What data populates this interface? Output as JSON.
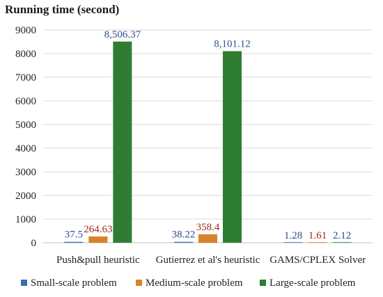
{
  "chart_data": {
    "type": "bar",
    "title": "Running time (second)",
    "ylabel": "Running time (second)",
    "xlabel": "",
    "categories": [
      "Push&pull heuristic",
      "Gutierrez et al's heuristic",
      "GAMS/CPLEX Solver"
    ],
    "series": [
      {
        "name": "Small-scale problem",
        "values": [
          37.5,
          38.22,
          1.28
        ],
        "labels": [
          "37.5",
          "38.22",
          "1.28"
        ],
        "color": "#3a6cb0",
        "label_color": "#2f4f8f"
      },
      {
        "name": "Medium-scale problem",
        "values": [
          264.63,
          358.4,
          1.61
        ],
        "labels": [
          "264.63",
          "358.4",
          "1.61"
        ],
        "color": "#d9822b",
        "label_color": "#9c2a14"
      },
      {
        "name": "Large-scale problem",
        "values": [
          8506.37,
          8101.12,
          2.12
        ],
        "labels": [
          "8,506.37",
          "8,101.12",
          "2.12"
        ],
        "color": "#2e7d32",
        "label_color": "#2f4f8f"
      }
    ],
    "yticks": [
      0,
      1000,
      2000,
      3000,
      4000,
      5000,
      6000,
      7000,
      8000,
      9000
    ],
    "ylim": [
      0,
      9000
    ],
    "grid": true,
    "legend": "bottom"
  }
}
